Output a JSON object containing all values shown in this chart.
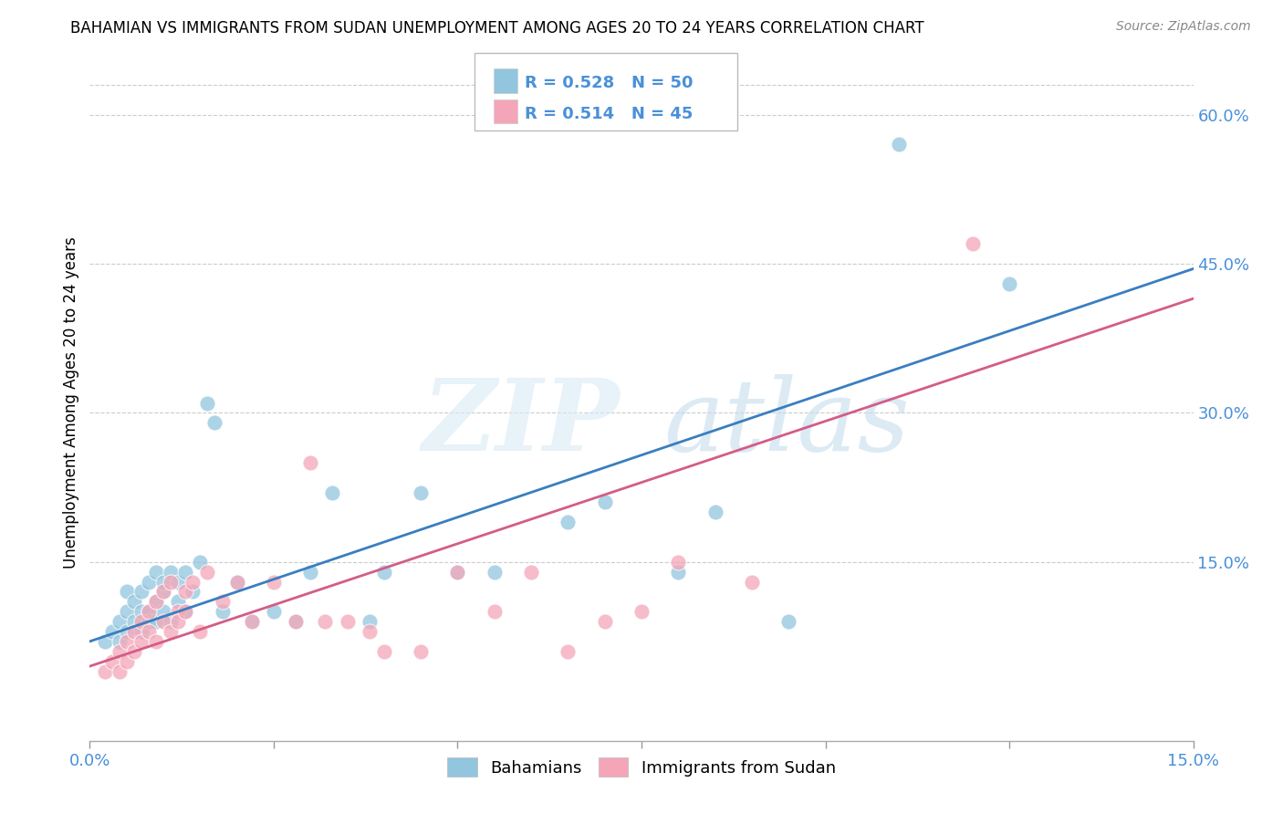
{
  "title": "BAHAMIAN VS IMMIGRANTS FROM SUDAN UNEMPLOYMENT AMONG AGES 20 TO 24 YEARS CORRELATION CHART",
  "source": "Source: ZipAtlas.com",
  "ylabel": "Unemployment Among Ages 20 to 24 years",
  "yticks": [
    "15.0%",
    "30.0%",
    "45.0%",
    "60.0%"
  ],
  "ytick_vals": [
    0.15,
    0.3,
    0.45,
    0.6
  ],
  "xlim": [
    0.0,
    0.15
  ],
  "ylim": [
    -0.03,
    0.65
  ],
  "legend1_R": "0.528",
  "legend1_N": "50",
  "legend2_R": "0.514",
  "legend2_N": "45",
  "legend_label1": "Bahamians",
  "legend_label2": "Immigrants from Sudan",
  "blue_color": "#92c5de",
  "pink_color": "#f4a6b8",
  "line_blue": "#3a7ebf",
  "line_pink": "#d45c87",
  "tick_label_color": "#4a90d9",
  "blue_scatter_x": [
    0.002,
    0.003,
    0.004,
    0.004,
    0.005,
    0.005,
    0.005,
    0.006,
    0.006,
    0.007,
    0.007,
    0.007,
    0.008,
    0.008,
    0.008,
    0.009,
    0.009,
    0.009,
    0.01,
    0.01,
    0.01,
    0.011,
    0.011,
    0.012,
    0.012,
    0.013,
    0.013,
    0.014,
    0.015,
    0.016,
    0.017,
    0.018,
    0.02,
    0.022,
    0.025,
    0.028,
    0.03,
    0.033,
    0.038,
    0.04,
    0.045,
    0.05,
    0.055,
    0.065,
    0.07,
    0.08,
    0.085,
    0.095,
    0.11,
    0.125
  ],
  "blue_scatter_y": [
    0.07,
    0.08,
    0.09,
    0.07,
    0.08,
    0.1,
    0.12,
    0.09,
    0.11,
    0.1,
    0.12,
    0.08,
    0.13,
    0.1,
    0.09,
    0.11,
    0.14,
    0.09,
    0.12,
    0.1,
    0.13,
    0.14,
    0.09,
    0.13,
    0.11,
    0.14,
    0.1,
    0.12,
    0.15,
    0.31,
    0.29,
    0.1,
    0.13,
    0.09,
    0.1,
    0.09,
    0.14,
    0.22,
    0.09,
    0.14,
    0.22,
    0.14,
    0.14,
    0.19,
    0.21,
    0.14,
    0.2,
    0.09,
    0.57,
    0.43
  ],
  "pink_scatter_x": [
    0.002,
    0.003,
    0.004,
    0.004,
    0.005,
    0.005,
    0.006,
    0.006,
    0.007,
    0.007,
    0.008,
    0.008,
    0.009,
    0.009,
    0.01,
    0.01,
    0.011,
    0.011,
    0.012,
    0.012,
    0.013,
    0.013,
    0.014,
    0.015,
    0.016,
    0.018,
    0.02,
    0.022,
    0.025,
    0.028,
    0.03,
    0.032,
    0.035,
    0.038,
    0.04,
    0.045,
    0.05,
    0.055,
    0.06,
    0.065,
    0.07,
    0.075,
    0.08,
    0.09,
    0.12
  ],
  "pink_scatter_y": [
    0.04,
    0.05,
    0.06,
    0.04,
    0.07,
    0.05,
    0.08,
    0.06,
    0.09,
    0.07,
    0.1,
    0.08,
    0.11,
    0.07,
    0.12,
    0.09,
    0.13,
    0.08,
    0.1,
    0.09,
    0.12,
    0.1,
    0.13,
    0.08,
    0.14,
    0.11,
    0.13,
    0.09,
    0.13,
    0.09,
    0.25,
    0.09,
    0.09,
    0.08,
    0.06,
    0.06,
    0.14,
    0.1,
    0.14,
    0.06,
    0.09,
    0.1,
    0.15,
    0.13,
    0.47
  ],
  "blue_line_x": [
    0.0,
    0.15
  ],
  "blue_line_y": [
    0.07,
    0.445
  ],
  "pink_line_x": [
    0.0,
    0.15
  ],
  "pink_line_y": [
    0.045,
    0.415
  ]
}
